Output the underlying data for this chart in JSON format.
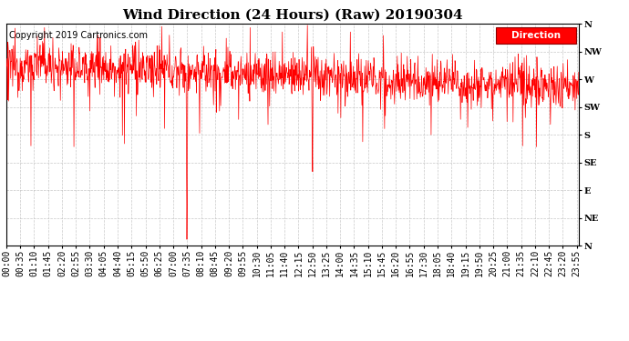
{
  "title": "Wind Direction (24 Hours) (Raw) 20190304",
  "copyright_text": "Copyright 2019 Cartronics.com",
  "legend_label": "Direction",
  "legend_color": "#ff0000",
  "legend_text_color": "#ffffff",
  "line_color": "#ff0000",
  "background_color": "#ffffff",
  "grid_color": "#bbbbbb",
  "ytick_labels": [
    "N",
    "NW",
    "W",
    "SW",
    "S",
    "SE",
    "E",
    "NE",
    "N"
  ],
  "ytick_values": [
    360,
    315,
    270,
    225,
    180,
    135,
    90,
    45,
    0
  ],
  "ylim": [
    0,
    360
  ],
  "title_fontsize": 11,
  "tick_fontsize": 7,
  "copyright_fontsize": 7,
  "xtick_labels": [
    "00:00",
    "00:35",
    "01:10",
    "01:45",
    "02:20",
    "02:55",
    "03:30",
    "04:05",
    "04:40",
    "05:15",
    "05:50",
    "06:25",
    "07:00",
    "07:35",
    "08:10",
    "08:45",
    "09:20",
    "09:55",
    "10:30",
    "11:05",
    "11:40",
    "12:15",
    "12:50",
    "13:25",
    "14:00",
    "14:35",
    "15:10",
    "15:45",
    "16:20",
    "16:55",
    "17:30",
    "18:05",
    "18:40",
    "19:15",
    "19:50",
    "20:25",
    "21:00",
    "21:35",
    "22:10",
    "22:45",
    "23:20",
    "23:55"
  ]
}
